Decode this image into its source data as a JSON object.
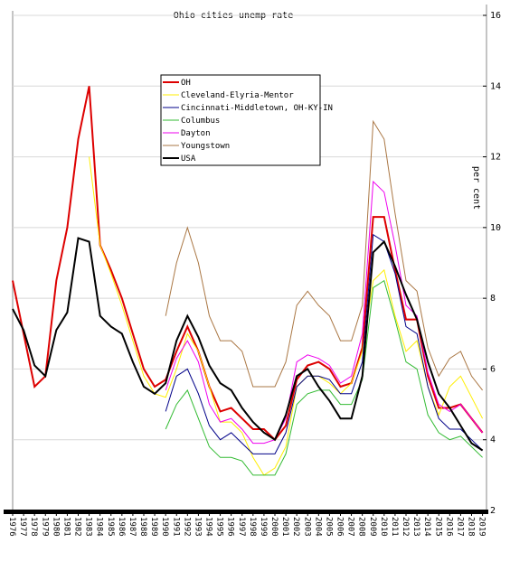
{
  "chart_data": {
    "type": "line",
    "title": "Ohio cities unemp rate",
    "y_label": "per cent",
    "x": [
      1976,
      1977,
      1978,
      1979,
      1980,
      1981,
      1982,
      1983,
      1984,
      1985,
      1986,
      1987,
      1988,
      1989,
      1990,
      1991,
      1992,
      1993,
      1994,
      1995,
      1996,
      1997,
      1998,
      1999,
      2000,
      2001,
      2002,
      2003,
      2004,
      2005,
      2006,
      2007,
      2008,
      2009,
      2010,
      2011,
      2012,
      2013,
      2014,
      2015,
      2016,
      2017,
      2018,
      2019
    ],
    "xlim": [
      1976,
      2019.2
    ],
    "xticks": [
      1976,
      1977,
      1978,
      1979,
      1980,
      1981,
      1982,
      1983,
      1984,
      1985,
      1986,
      1987,
      1988,
      1989,
      1990,
      1991,
      1992,
      1993,
      1994,
      1995,
      1996,
      1997,
      1998,
      1999,
      2000,
      2001,
      2002,
      2003,
      2004,
      2005,
      2006,
      2007,
      2008,
      2009,
      2010,
      2011,
      2012,
      2013,
      2014,
      2015,
      2016,
      2017,
      2018,
      2019
    ],
    "ylim": [
      2,
      16
    ],
    "yticks": [
      2,
      4,
      6,
      8,
      10,
      12,
      14,
      16
    ],
    "grid": true,
    "series": [
      {
        "name": "OH",
        "color": "#dd0000",
        "values": [
          8.5,
          7,
          5.5,
          5.8,
          8.5,
          10,
          12.5,
          14,
          9.5,
          8.8,
          8,
          7,
          6,
          5.5,
          5.7,
          6.5,
          7.2,
          6.5,
          5.5,
          4.8,
          4.9,
          4.6,
          4.3,
          4.3,
          4,
          4.4,
          5.7,
          6.1,
          6.2,
          6,
          5.5,
          5.6,
          6.6,
          10.3,
          10.3,
          8.8,
          7.4,
          7.4,
          5.8,
          4.9,
          4.9,
          5,
          4.6,
          4.2
        ]
      },
      {
        "name": "Cleveland-Elyria-Mentor",
        "color": "#ffee00",
        "values": [
          null,
          null,
          null,
          null,
          null,
          null,
          null,
          12,
          9.5,
          8.7,
          7.8,
          6.8,
          5.8,
          5.3,
          5.2,
          6,
          7,
          6.5,
          5.5,
          4.5,
          4.5,
          4.2,
          3.5,
          3,
          3.2,
          3.8,
          5.5,
          5.8,
          5.8,
          5.6,
          5.3,
          5.6,
          6.5,
          8.5,
          8.8,
          7.5,
          6.5,
          6.8,
          5.5,
          4.7,
          5.5,
          5.8,
          5.2,
          4.6
        ]
      },
      {
        "name": "Cincinnati-Middletown, OH-KY-IN",
        "color": "#000088",
        "values": [
          null,
          null,
          null,
          null,
          null,
          null,
          null,
          null,
          null,
          null,
          null,
          null,
          null,
          null,
          4.8,
          5.8,
          6,
          5.3,
          4.4,
          4,
          4.2,
          3.9,
          3.6,
          3.6,
          3.6,
          4.2,
          5.5,
          5.8,
          5.8,
          5.7,
          5.3,
          5.3,
          6.2,
          9.8,
          9.6,
          8.7,
          7.2,
          7,
          5.5,
          4.6,
          4.3,
          4.3,
          4,
          3.7
        ]
      },
      {
        "name": "Columbus",
        "color": "#33bb33",
        "values": [
          null,
          null,
          null,
          null,
          null,
          null,
          null,
          null,
          null,
          null,
          null,
          null,
          null,
          null,
          4.3,
          5,
          5.4,
          4.6,
          3.8,
          3.5,
          3.5,
          3.4,
          3,
          3,
          3,
          3.6,
          5,
          5.3,
          5.4,
          5.4,
          5,
          5,
          5.7,
          8.3,
          8.5,
          7.4,
          6.2,
          6,
          4.7,
          4.2,
          4,
          4.1,
          3.8,
          3.5
        ]
      },
      {
        "name": "Dayton",
        "color": "#ee00ee",
        "values": [
          null,
          null,
          null,
          null,
          null,
          null,
          null,
          null,
          null,
          null,
          null,
          null,
          null,
          null,
          5.4,
          6.3,
          6.8,
          6.2,
          5,
          4.5,
          4.6,
          4.3,
          3.9,
          3.9,
          4,
          4.6,
          6.2,
          6.4,
          6.3,
          6.1,
          5.6,
          5.8,
          7,
          11.3,
          11,
          9.5,
          7.8,
          7.5,
          5.9,
          5,
          4.8,
          5,
          4.6,
          4.2
        ]
      },
      {
        "name": "Youngstown",
        "color": "#aa7744",
        "values": [
          null,
          null,
          null,
          null,
          null,
          null,
          null,
          null,
          null,
          null,
          null,
          null,
          null,
          null,
          7.5,
          9,
          10,
          9,
          7.5,
          6.8,
          6.8,
          6.5,
          5.5,
          5.5,
          5.5,
          6.2,
          7.8,
          8.2,
          7.8,
          7.5,
          6.8,
          6.8,
          7.8,
          13,
          12.5,
          10.4,
          8.5,
          8.2,
          6.6,
          5.8,
          6.3,
          6.5,
          5.8,
          5.4
        ]
      },
      {
        "name": "USA",
        "color": "#000000",
        "values": [
          7.7,
          7.1,
          6.1,
          5.8,
          7.1,
          7.6,
          9.7,
          9.6,
          7.5,
          7.2,
          7,
          6.2,
          5.5,
          5.3,
          5.6,
          6.8,
          7.5,
          6.9,
          6.1,
          5.6,
          5.4,
          4.9,
          4.5,
          4.2,
          4,
          4.7,
          5.8,
          6,
          5.5,
          5.1,
          4.6,
          4.6,
          5.8,
          9.3,
          9.6,
          8.9,
          8.1,
          7.4,
          6.2,
          5.3,
          4.9,
          4.4,
          3.9,
          3.7
        ]
      }
    ]
  }
}
